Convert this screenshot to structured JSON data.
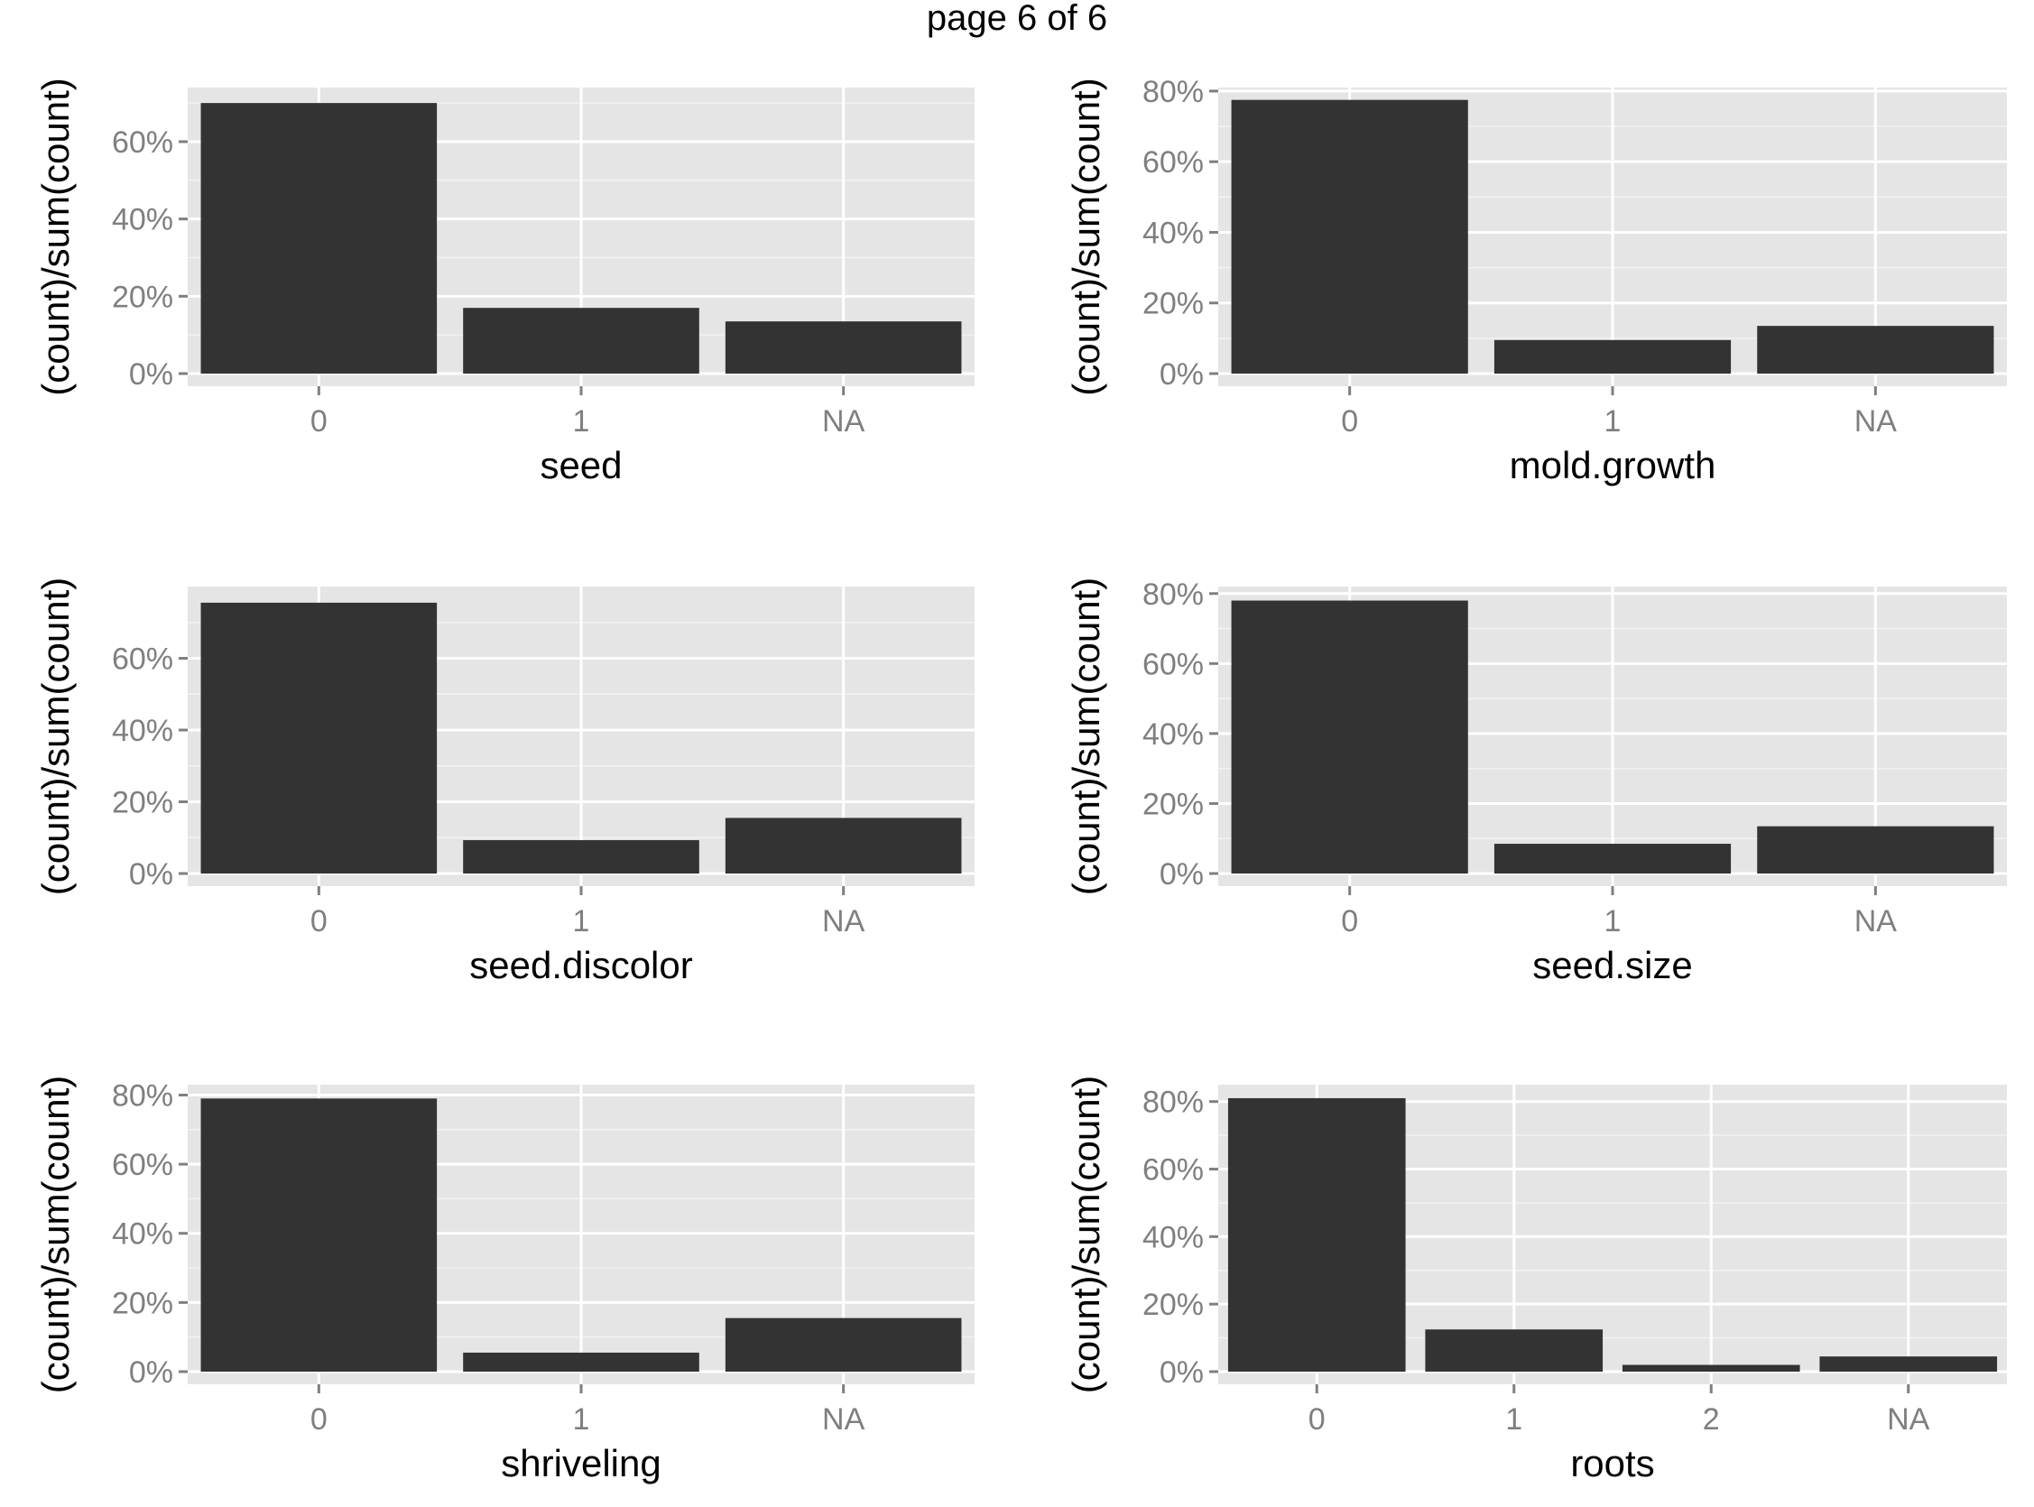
{
  "page_title": "page 6 of 6",
  "chart_data": [
    {
      "type": "bar",
      "xlabel": "seed",
      "ylabel": "(count)/sum(count)",
      "categories": [
        "0",
        "1",
        "NA"
      ],
      "values": [
        0.7,
        0.17,
        0.135
      ],
      "ylim": [
        0,
        0.74
      ],
      "yticks": [
        0,
        0.2,
        0.4,
        0.6
      ],
      "ytick_labels": [
        "0%",
        "20%",
        "40%",
        "60%"
      ],
      "grid": true,
      "bar_color": "#333333",
      "panel_bg": "#e5e5e5"
    },
    {
      "type": "bar",
      "xlabel": "mold.growth",
      "ylabel": "(count)/sum(count)",
      "categories": [
        "0",
        "1",
        "NA"
      ],
      "values": [
        0.775,
        0.095,
        0.135
      ],
      "ylim": [
        0,
        0.81
      ],
      "yticks": [
        0,
        0.2,
        0.4,
        0.6,
        0.8
      ],
      "ytick_labels": [
        "0%",
        "20%",
        "40%",
        "60%",
        "80%"
      ],
      "grid": true,
      "bar_color": "#333333",
      "panel_bg": "#e5e5e5"
    },
    {
      "type": "bar",
      "xlabel": "seed.discolor",
      "ylabel": "(count)/sum(count)",
      "categories": [
        "0",
        "1",
        "NA"
      ],
      "values": [
        0.755,
        0.093,
        0.155
      ],
      "ylim": [
        0,
        0.8
      ],
      "yticks": [
        0,
        0.2,
        0.4,
        0.6
      ],
      "ytick_labels": [
        "0%",
        "20%",
        "40%",
        "60%"
      ],
      "grid": true,
      "bar_color": "#333333",
      "panel_bg": "#e5e5e5"
    },
    {
      "type": "bar",
      "xlabel": "seed.size",
      "ylabel": "(count)/sum(count)",
      "categories": [
        "0",
        "1",
        "NA"
      ],
      "values": [
        0.78,
        0.085,
        0.135
      ],
      "ylim": [
        0,
        0.82
      ],
      "yticks": [
        0,
        0.2,
        0.4,
        0.6,
        0.8
      ],
      "ytick_labels": [
        "0%",
        "20%",
        "40%",
        "60%",
        "80%"
      ],
      "grid": true,
      "bar_color": "#333333",
      "panel_bg": "#e5e5e5"
    },
    {
      "type": "bar",
      "xlabel": "shriveling",
      "ylabel": "(count)/sum(count)",
      "categories": [
        "0",
        "1",
        "NA"
      ],
      "values": [
        0.79,
        0.055,
        0.155
      ],
      "ylim": [
        0,
        0.83
      ],
      "yticks": [
        0,
        0.2,
        0.4,
        0.6,
        0.8
      ],
      "ytick_labels": [
        "0%",
        "20%",
        "40%",
        "60%",
        "80%"
      ],
      "grid": true,
      "bar_color": "#333333",
      "panel_bg": "#e5e5e5"
    },
    {
      "type": "bar",
      "xlabel": "roots",
      "ylabel": "(count)/sum(count)",
      "categories": [
        "0",
        "1",
        "2",
        "NA"
      ],
      "values": [
        0.81,
        0.125,
        0.02,
        0.045
      ],
      "ylim": [
        0,
        0.85
      ],
      "yticks": [
        0,
        0.2,
        0.4,
        0.6,
        0.8
      ],
      "ytick_labels": [
        "0%",
        "20%",
        "40%",
        "60%",
        "80%"
      ],
      "grid": true,
      "bar_color": "#333333",
      "panel_bg": "#e5e5e5"
    }
  ]
}
